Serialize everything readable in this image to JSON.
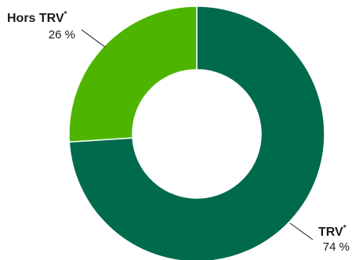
{
  "chart_data": {
    "type": "pie",
    "variant": "donut",
    "categories": [
      "TRV*",
      "Hors TRV*"
    ],
    "values": [
      74,
      26
    ],
    "unit": "%",
    "colors": [
      "#006a4d",
      "#4db500"
    ],
    "labels": [
      {
        "name": "TRV",
        "sup": "*",
        "value": "74 %"
      },
      {
        "name": "Hors TRV",
        "sup": "*",
        "value": "26 %"
      }
    ],
    "start_angle_deg": 0,
    "direction": "clockwise",
    "legend": "none"
  }
}
